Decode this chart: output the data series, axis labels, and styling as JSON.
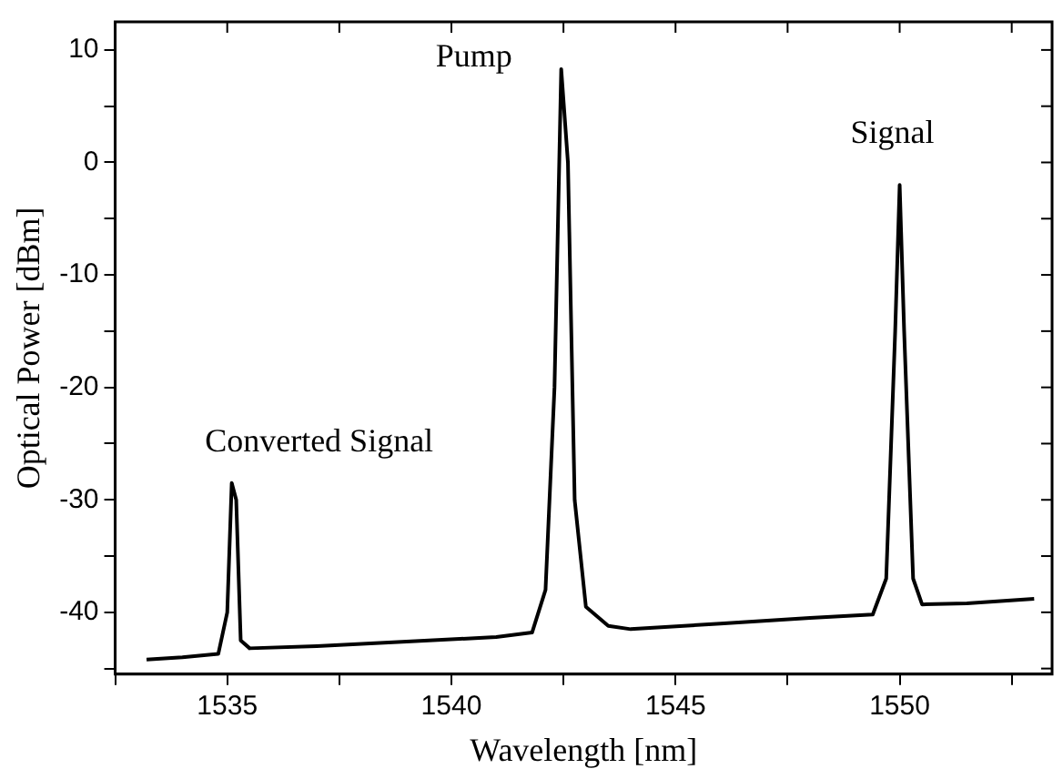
{
  "chart_data": {
    "type": "line",
    "xlabel": "Wavelength [nm]",
    "ylabel": "Optical Power [dBm]",
    "x": [
      1533.2,
      1534.0,
      1534.8,
      1535.0,
      1535.1,
      1535.2,
      1535.3,
      1535.5,
      1537.0,
      1539.0,
      1541.0,
      1541.8,
      1542.1,
      1542.3,
      1542.45,
      1542.6,
      1542.75,
      1543.0,
      1543.5,
      1544.0,
      1546.0,
      1548.0,
      1549.4,
      1549.7,
      1549.9,
      1550.0,
      1550.1,
      1550.3,
      1550.5,
      1551.5,
      1553.0
    ],
    "series": [
      {
        "color": "#000000",
        "values": [
          -44.2,
          -44.0,
          -43.7,
          -40,
          -28.5,
          -30,
          -42.5,
          -43.2,
          -43.0,
          -42.6,
          -42.2,
          -41.8,
          -38,
          -20,
          8.3,
          0,
          -30,
          -39.5,
          -41.2,
          -41.5,
          -41.0,
          -40.5,
          -40.2,
          -37,
          -15,
          -2,
          -15,
          -37,
          -39.3,
          -39.2,
          -38.8
        ]
      }
    ],
    "xlim": [
      1532.5,
      1553.4
    ],
    "xticks": [
      {
        "value": 1532.5,
        "label": null
      },
      1535,
      {
        "value": 1537.5,
        "label": null
      },
      1540,
      {
        "value": 1542.5,
        "label": null
      },
      1545,
      {
        "value": 1547.5,
        "label": null
      },
      1550,
      {
        "value": 1552.5,
        "label": null
      }
    ],
    "ylim": [
      -45.5,
      12.5
    ],
    "yticks": [
      {
        "value": -45,
        "label": null
      },
      -40,
      {
        "value": -35,
        "label": null
      },
      -30,
      {
        "value": -25,
        "label": null
      },
      -20,
      {
        "value": -15,
        "label": null
      },
      -10,
      {
        "value": -5,
        "label": null
      },
      0,
      {
        "value": 5,
        "label": null
      },
      10
    ],
    "annotations": [
      {
        "text": "Converted Signal",
        "x": 1535.1,
        "y": -28.5
      },
      {
        "text": "Pump",
        "x": 1542.45,
        "y": 8.3
      },
      {
        "text": "Signal",
        "x": 1550.0,
        "y": -2
      }
    ],
    "grid": false,
    "legend": false,
    "marker": "none",
    "line_style": "solid"
  }
}
